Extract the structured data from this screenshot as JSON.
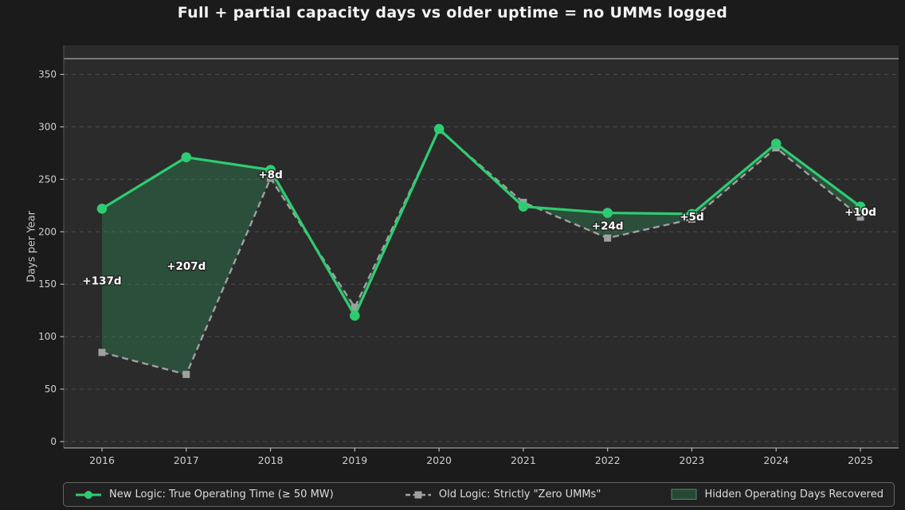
{
  "chart_data": {
    "type": "line",
    "title": "Full + partial capacity days vs older uptime = no UMMs logged",
    "xlabel": "",
    "ylabel": "Days per Year",
    "categories": [
      2016,
      2017,
      2018,
      2019,
      2020,
      2021,
      2022,
      2023,
      2024,
      2025
    ],
    "series": [
      {
        "name": "New Logic: True Operating Time (≥ 50 MW)",
        "color": "#2ecc71",
        "style": "solid",
        "marker": "circle",
        "values": [
          222,
          271,
          259,
          120,
          298,
          224,
          218,
          217,
          284,
          224
        ]
      },
      {
        "name": "Old Logic: Strictly \"Zero UMMs\"",
        "color": "#a0a0a0",
        "style": "dashed",
        "marker": "square",
        "values": [
          85,
          64,
          251,
          128,
          297,
          228,
          194,
          212,
          280,
          214
        ]
      }
    ],
    "fill_between": {
      "label": "Hidden Operating Days Recovered",
      "color": "rgba(46,139,87,0.38)",
      "edge_color": "#4c8c63"
    },
    "reference_line": {
      "y": 365,
      "color": "#8a8a8a"
    },
    "annotations": [
      {
        "x": 2016,
        "text": "+137d"
      },
      {
        "x": 2017,
        "text": "+207d"
      },
      {
        "x": 2018,
        "text": "+8d"
      },
      {
        "x": 2022,
        "text": "+24d"
      },
      {
        "x": 2023,
        "text": "+5d"
      },
      {
        "x": 2025,
        "text": "+10d"
      }
    ],
    "yticks": [
      0,
      50,
      100,
      150,
      200,
      250,
      300,
      350
    ],
    "ylim": [
      -7,
      378
    ],
    "grid": "horizontal-dashed",
    "legend_position": "bottom",
    "colors": {
      "figure_bg": "#1b1b1b",
      "plot_bg": "#2b2b2b",
      "gridline": "#4e4e4e",
      "tick_label": "#cfcfcf",
      "annotation_text": "#ffffff"
    }
  }
}
